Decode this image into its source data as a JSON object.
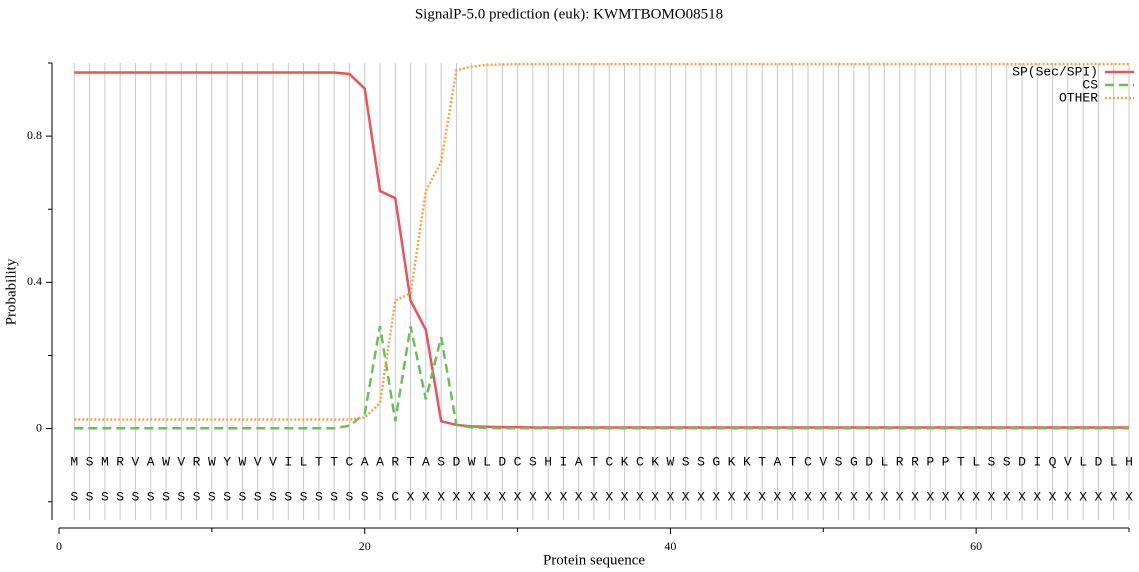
{
  "chart_data": {
    "type": "line",
    "title": "SignalP-5.0 prediction (euk):  KWMTBOMO08518",
    "xlabel": "Protein sequence",
    "ylabel": "Probability",
    "x": [
      1,
      2,
      3,
      4,
      5,
      6,
      7,
      8,
      9,
      10,
      11,
      12,
      13,
      14,
      15,
      16,
      17,
      18,
      19,
      20,
      21,
      22,
      23,
      24,
      25,
      26,
      27,
      28,
      29,
      30,
      31,
      32,
      33,
      34,
      35,
      36,
      37,
      38,
      39,
      40,
      41,
      42,
      43,
      44,
      45,
      46,
      47,
      48,
      49,
      50,
      51,
      52,
      53,
      54,
      55,
      56,
      57,
      58,
      59,
      60,
      61,
      62,
      63,
      64,
      65,
      66,
      67,
      68,
      69,
      70
    ],
    "sequence": [
      "M",
      "S",
      "M",
      "R",
      "V",
      "A",
      "W",
      "V",
      "R",
      "W",
      "Y",
      "W",
      "V",
      "V",
      "I",
      "L",
      "T",
      "T",
      "C",
      "A",
      "A",
      "R",
      "T",
      "A",
      "S",
      "D",
      "W",
      "L",
      "D",
      "C",
      "S",
      "H",
      "I",
      "A",
      "T",
      "C",
      "K",
      "C",
      "K",
      "W",
      "S",
      "S",
      "G",
      "K",
      "K",
      "T",
      "A",
      "T",
      "C",
      "V",
      "S",
      "G",
      "D",
      "L",
      "R",
      "R",
      "P",
      "P",
      "T",
      "L",
      "S",
      "S",
      "D",
      "I",
      "Q",
      "V",
      "L",
      "D",
      "L",
      "H"
    ],
    "annotation": [
      "S",
      "S",
      "S",
      "S",
      "S",
      "S",
      "S",
      "S",
      "S",
      "S",
      "S",
      "S",
      "S",
      "S",
      "S",
      "S",
      "S",
      "S",
      "S",
      "S",
      "S",
      "C",
      "X",
      "X",
      "X",
      "X",
      "X",
      "X",
      "X",
      "X",
      "X",
      "X",
      "X",
      "X",
      "X",
      "X",
      "X",
      "X",
      "X",
      "X",
      "X",
      "X",
      "X",
      "X",
      "X",
      "X",
      "X",
      "X",
      "X",
      "X",
      "X",
      "X",
      "X",
      "X",
      "X",
      "X",
      "X",
      "X",
      "X",
      "X",
      "X",
      "X",
      "X",
      "X",
      "X",
      "X",
      "X",
      "X",
      "X",
      "X"
    ],
    "series": [
      {
        "name": "SP(Sec/SPI)",
        "color": "#e8545a",
        "dash": "none",
        "values": [
          0.974,
          0.974,
          0.974,
          0.974,
          0.974,
          0.974,
          0.974,
          0.974,
          0.974,
          0.974,
          0.974,
          0.974,
          0.974,
          0.974,
          0.974,
          0.974,
          0.974,
          0.974,
          0.97,
          0.93,
          0.65,
          0.63,
          0.35,
          0.27,
          0.02,
          0.01,
          0.006,
          0.005,
          0.004,
          0.004,
          0.003,
          0.003,
          0.003,
          0.003,
          0.003,
          0.003,
          0.003,
          0.003,
          0.003,
          0.003,
          0.003,
          0.003,
          0.003,
          0.003,
          0.003,
          0.003,
          0.003,
          0.003,
          0.003,
          0.003,
          0.003,
          0.003,
          0.003,
          0.003,
          0.003,
          0.003,
          0.003,
          0.003,
          0.003,
          0.003,
          0.003,
          0.003,
          0.003,
          0.003,
          0.003,
          0.003,
          0.003,
          0.003,
          0.003,
          0.003
        ]
      },
      {
        "name": "CS",
        "color": "#6abf5a",
        "dash": "9,5",
        "values": [
          0.001,
          0.001,
          0.001,
          0.001,
          0.001,
          0.001,
          0.001,
          0.001,
          0.001,
          0.001,
          0.001,
          0.001,
          0.001,
          0.001,
          0.001,
          0.001,
          0.001,
          0.001,
          0.008,
          0.04,
          0.28,
          0.02,
          0.28,
          0.08,
          0.25,
          0.01,
          0.003,
          0.002,
          0.001,
          0.001,
          0.001,
          0.001,
          0.001,
          0.001,
          0.001,
          0.001,
          0.001,
          0.001,
          0.001,
          0.001,
          0.001,
          0.001,
          0.001,
          0.001,
          0.001,
          0.001,
          0.001,
          0.001,
          0.001,
          0.001,
          0.001,
          0.001,
          0.001,
          0.001,
          0.001,
          0.001,
          0.001,
          0.001,
          0.001,
          0.001,
          0.001,
          0.001,
          0.001,
          0.001,
          0.001,
          0.001,
          0.001,
          0.001,
          0.001,
          0.001
        ]
      },
      {
        "name": "OTHER",
        "color": "#f0a54a",
        "dash": "2,2",
        "values": [
          0.025,
          0.025,
          0.025,
          0.025,
          0.025,
          0.025,
          0.025,
          0.025,
          0.025,
          0.025,
          0.025,
          0.025,
          0.025,
          0.025,
          0.025,
          0.025,
          0.025,
          0.025,
          0.025,
          0.03,
          0.07,
          0.35,
          0.37,
          0.65,
          0.73,
          0.98,
          0.99,
          0.995,
          0.996,
          0.997,
          0.997,
          0.997,
          0.997,
          0.997,
          0.997,
          0.997,
          0.997,
          0.997,
          0.997,
          0.997,
          0.997,
          0.997,
          0.997,
          0.997,
          0.997,
          0.997,
          0.997,
          0.997,
          0.997,
          0.997,
          0.997,
          0.997,
          0.997,
          0.997,
          0.997,
          0.997,
          0.997,
          0.997,
          0.997,
          0.997,
          0.997,
          0.997,
          0.997,
          0.997,
          0.997,
          0.997,
          0.997,
          0.997,
          0.997,
          0.997
        ]
      }
    ],
    "xlim": [
      0,
      70
    ],
    "xticks": [
      0,
      20,
      40,
      60
    ],
    "x_minor_ticks": [
      10,
      30,
      50,
      70
    ],
    "ylim": [
      -0.25,
      1.0
    ],
    "yticks": [
      0,
      0.4,
      0.8
    ],
    "y_minor_ticks": [
      -0.2,
      0.2,
      0.6,
      1.0
    ],
    "grid": true,
    "legend": "upper right"
  }
}
